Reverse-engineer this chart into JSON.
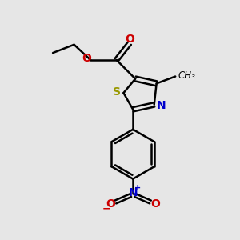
{
  "background_color": "#e6e6e6",
  "bond_color": "#000000",
  "bond_width": 1.8,
  "atoms": {
    "S": {
      "color": "#999900",
      "fontsize": 10
    },
    "N_thiazole": {
      "color": "#0000cc",
      "fontsize": 10
    },
    "O_carbonyl": {
      "color": "#cc0000",
      "fontsize": 10
    },
    "O_ester": {
      "color": "#cc0000",
      "fontsize": 10
    },
    "N_nitro": {
      "color": "#0000cc",
      "fontsize": 10
    },
    "O_nitro1": {
      "color": "#cc0000",
      "fontsize": 10
    },
    "O_nitro2": {
      "color": "#cc0000",
      "fontsize": 10
    },
    "methyl": {
      "color": "#000000",
      "fontsize": 8.5
    }
  },
  "figsize": [
    3.0,
    3.0
  ],
  "dpi": 100,
  "xlim": [
    0,
    10
  ],
  "ylim": [
    0,
    10
  ]
}
